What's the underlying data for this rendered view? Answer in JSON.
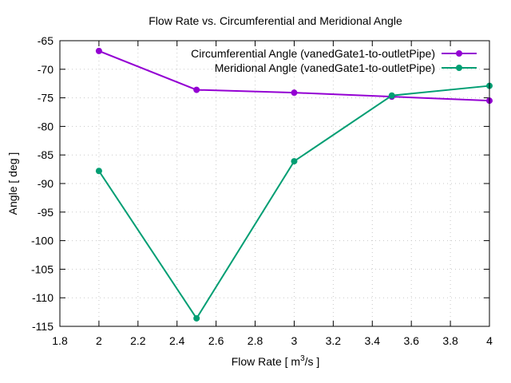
{
  "chart_data": {
    "type": "line",
    "title": "Flow Rate vs. Circumferential and Meridional Angle",
    "xlabel": "Flow Rate [ m",
    "xlabel_sup": "3",
    "xlabel_suffix": "/s ]",
    "ylabel": "Angle [ deg ]",
    "xlim": [
      1.8,
      4
    ],
    "ylim": [
      -115,
      -65
    ],
    "xticks": [
      1.8,
      2,
      2.2,
      2.4,
      2.6,
      2.8,
      3,
      3.2,
      3.4,
      3.6,
      3.8,
      4
    ],
    "xtick_labels": [
      "1.8",
      "2",
      "2.2",
      "2.4",
      "2.6",
      "2.8",
      "3",
      "3.2",
      "3.4",
      "3.6",
      "3.8",
      "4"
    ],
    "yticks": [
      -65,
      -70,
      -75,
      -80,
      -85,
      -90,
      -95,
      -100,
      -105,
      -110,
      -115
    ],
    "ytick_labels": [
      "-65",
      "-70",
      "-75",
      "-80",
      "-85",
      "-90",
      "-95",
      "-100",
      "-105",
      "-110",
      "-115"
    ],
    "grid": true,
    "legend_position": "top-right",
    "x": [
      2,
      2.5,
      3,
      3.5,
      4
    ],
    "series": [
      {
        "name": "Circumferential Angle (vanedGate1-to-outletPipe)",
        "color": "#9400d3",
        "values": [
          -66.8,
          -73.6,
          -74.1,
          -74.8,
          -75.5
        ]
      },
      {
        "name": "Meridional Angle (vanedGate1-to-outletPipe)",
        "color": "#009e73",
        "values": [
          -87.8,
          -113.6,
          -86.1,
          -74.6,
          -72.9
        ]
      }
    ]
  }
}
